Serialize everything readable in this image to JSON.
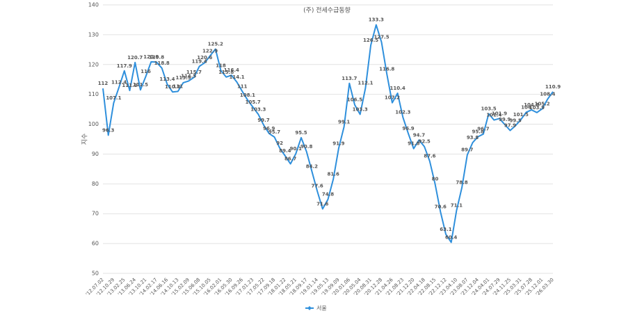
{
  "chart_data": {
    "type": "line",
    "title": "(주) 전세수급동향",
    "y_label": "지수",
    "categories": [
      "'12.07.02",
      null,
      "'12.10.29",
      null,
      "'13.02.25",
      null,
      "'13.06.24",
      null,
      "'13.10.21",
      null,
      "'14.02.17",
      null,
      "'14.06.16",
      null,
      "'14.10.13",
      null,
      "'15.02.09",
      null,
      "'15.06.08",
      null,
      "'15.10.05",
      null,
      "'16.02.01",
      null,
      "'16.05.30",
      null,
      "'16.09.26",
      null,
      "'17.01.23",
      null,
      "'17.05.22",
      null,
      "'17.09.18",
      null,
      "'18.01.22",
      null,
      "'18.05.21",
      null,
      "'18.09.17",
      null,
      "'19.01.14",
      null,
      "'19.05.13",
      null,
      "'19.09.09",
      null,
      "'20.01.06",
      null,
      "'20.05.04",
      null,
      "'20.08.31",
      null,
      "'20.12.28",
      null,
      "'21.04.26",
      null,
      "'21.08.23",
      null,
      "'21.12.20",
      null,
      "'22.04.18",
      null,
      "'22.08.15",
      null,
      "'22.12.12",
      null,
      "'23.04.10",
      null,
      "'23.08.07",
      null,
      "'23.12.04",
      null,
      "'24.04.01",
      null,
      "'24.07.29",
      null,
      "'24.11.25",
      null,
      "'25.03.31",
      null,
      "'25.07.28",
      null,
      "'25.12.01",
      null,
      "'26.03.30"
    ],
    "series": [
      {
        "name": "서울",
        "color": "#2e8fdc",
        "values": [
          112,
          96.3,
          107.1,
          112.4,
          117.9,
          111.3,
          120.7,
          111.5,
          116,
          120.9,
          120.8,
          118.8,
          113.4,
          110.8,
          111,
          113.9,
          114.5,
          115.7,
          119.4,
          120.6,
          122.9,
          125.2,
          118,
          115.8,
          116.4,
          114.1,
          111,
          108.1,
          105.7,
          103.3,
          99.7,
          96.9,
          95.7,
          92,
          89.4,
          86.7,
          90.1,
          95.5,
          90.8,
          84.2,
          77.6,
          71.6,
          74.8,
          81.6,
          91.9,
          99.1,
          113.7,
          106.5,
          103.3,
          112.1,
          126.5,
          133.3,
          127.5,
          116.8,
          107.2,
          110.4,
          102.3,
          96.9,
          91.8,
          94.7,
          92.5,
          87.6,
          80,
          70.6,
          63.1,
          60.4,
          71.1,
          78.8,
          89.7,
          93.8,
          95.8,
          96.7,
          103.5,
          101.4,
          101.9,
          99.9,
          97.9,
          99.5,
          101.5,
          104,
          104.8,
          103.9,
          105.2,
          108.4,
          110.9
        ]
      }
    ],
    "ylim": [
      50,
      140
    ],
    "yticks": [
      50,
      60,
      70,
      80,
      90,
      100,
      110,
      120,
      130,
      140
    ],
    "grid": true,
    "legend": "bottom"
  }
}
